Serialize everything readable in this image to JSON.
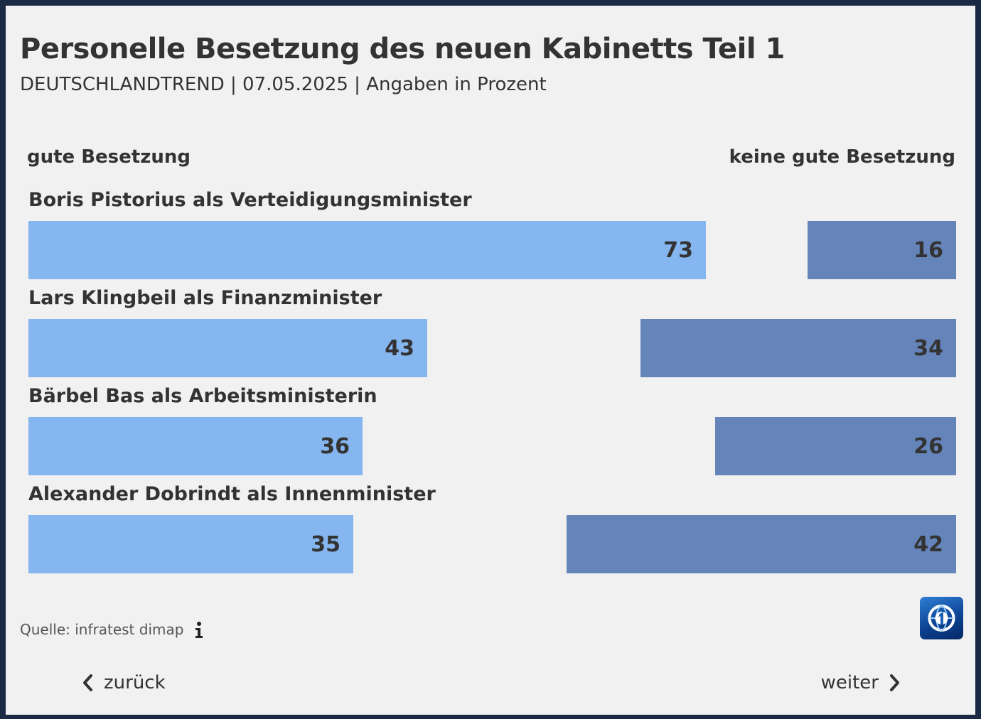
{
  "header": {
    "title": "Personelle Besetzung des neuen Kabinetts Teil 1",
    "subtitle": "DEUTSCHLANDTREND | 07.05.2025 | Angaben in Prozent"
  },
  "colors": {
    "good": "#85b6ef",
    "bad": "#6584ba",
    "text": "#333333",
    "background": "#f1f1f1",
    "frame": "#1b2a44"
  },
  "chart_data": {
    "type": "bar",
    "orientation": "horizontal-diverging",
    "title": "Personelle Besetzung des neuen Kabinetts Teil 1",
    "subtitle": "DEUTSCHLANDTREND | 07.05.2025 | Angaben in Prozent",
    "categories": [
      "Boris Pistorius als Verteidigungsminister",
      "Lars Klingbeil als Finanzminister",
      "Bärbel Bas als Arbeitsministerin",
      "Alexander Dobrindt als Innenminister"
    ],
    "series": [
      {
        "name": "gute Besetzung",
        "values": [
          73,
          43,
          36,
          35
        ]
      },
      {
        "name": "keine gute Besetzung",
        "values": [
          16,
          34,
          26,
          42
        ]
      }
    ],
    "xlim": [
      0,
      100
    ],
    "unit": "Prozent"
  },
  "footer": {
    "source": "Quelle: infratest dimap",
    "info_icon": "info-icon",
    "logo": "tagesschau-logo",
    "back_label": "zurück",
    "next_label": "weiter"
  }
}
